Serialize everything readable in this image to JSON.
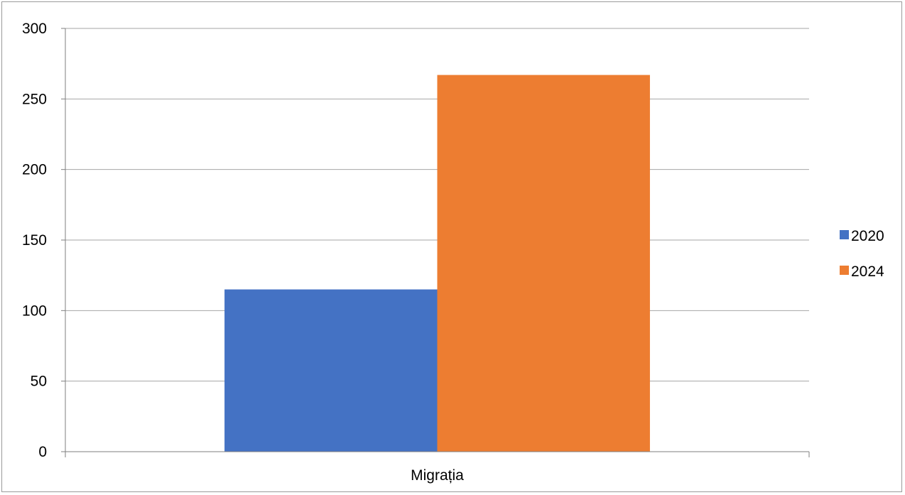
{
  "chart_data": {
    "type": "bar",
    "categories": [
      "Migrația"
    ],
    "series": [
      {
        "name": "2020",
        "values": [
          115
        ],
        "color": "#4472C4"
      },
      {
        "name": "2024",
        "values": [
          267
        ],
        "color": "#ED7D31"
      }
    ],
    "title": "",
    "xlabel": "",
    "ylabel": "",
    "ylim": [
      0,
      300
    ],
    "yticks": [
      0,
      50,
      100,
      150,
      200,
      250,
      300
    ],
    "grid": true,
    "legend": "right"
  }
}
